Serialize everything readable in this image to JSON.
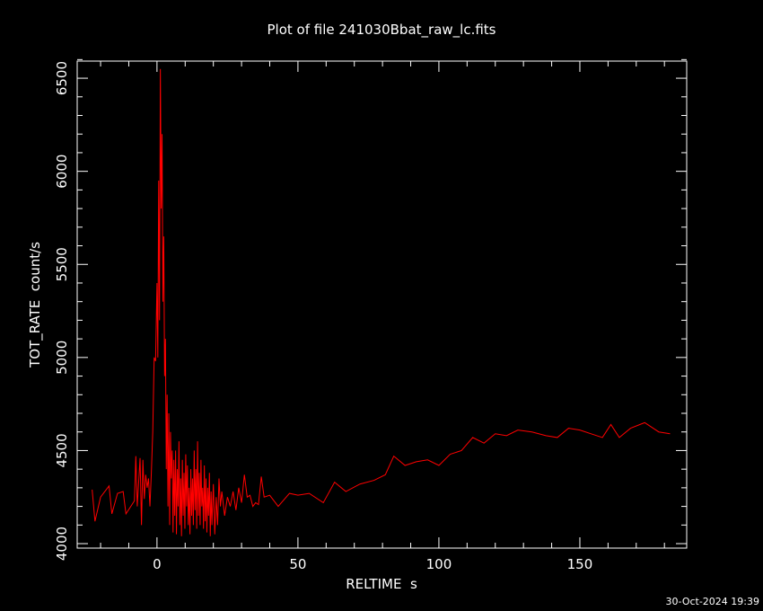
{
  "chart_data": {
    "type": "line",
    "title": "Plot of file 241030Bbat_raw_lc.fits",
    "x_label": "RELTIME  s",
    "y_label": "TOT_RATE  count/s",
    "footer": "30-Oct-2024 19:39",
    "xlim": [
      -28.3,
      187.9
    ],
    "ylim": [
      3976,
      6592
    ],
    "xticks": [
      0,
      50,
      100,
      150
    ],
    "yticks": [
      4000,
      4500,
      5000,
      5500,
      6000,
      6500
    ],
    "xminorticks": [
      -20,
      -10,
      10,
      20,
      30,
      40,
      60,
      70,
      80,
      90,
      110,
      120,
      130,
      140,
      160,
      170,
      180
    ],
    "yminorticks": [
      4100,
      4200,
      4300,
      4400,
      4600,
      4700,
      4800,
      4900,
      5100,
      5200,
      5300,
      5400,
      5600,
      5700,
      5800,
      5900,
      6100,
      6200,
      6300,
      6400,
      6600
    ],
    "series": [
      {
        "color": "#ff0000",
        "x": [
          -23,
          -22,
          -20,
          -17,
          -16,
          -14,
          -12,
          -11,
          -8,
          -7.5,
          -7,
          -6,
          -5.5,
          -5,
          -4.5,
          -4,
          -3.5,
          -3,
          -2.5,
          -2,
          -1.5,
          -1,
          -0.5,
          0,
          0.3,
          0.6,
          0.9,
          1.2,
          1.5,
          1.8,
          2.1,
          2.4,
          2.7,
          3,
          3.3,
          3.6,
          3.9,
          4.2,
          4.5,
          4.8,
          5.1,
          5.4,
          5.7,
          6,
          6.3,
          6.6,
          6.9,
          7.2,
          7.5,
          7.8,
          8.1,
          8.4,
          8.7,
          9,
          9.3,
          9.6,
          9.9,
          10.2,
          10.5,
          10.8,
          11.1,
          11.4,
          11.7,
          12,
          12.3,
          12.6,
          12.9,
          13.2,
          13.5,
          13.8,
          14.1,
          14.4,
          14.7,
          15,
          15.3,
          15.6,
          15.9,
          16.2,
          16.5,
          16.8,
          17.1,
          17.4,
          17.7,
          18,
          18.3,
          18.6,
          18.9,
          19.2,
          19.5,
          20,
          20.5,
          21,
          21.5,
          22,
          22.5,
          23,
          24,
          25,
          26,
          27,
          28,
          29,
          30,
          31,
          32,
          33,
          34,
          35,
          36,
          37,
          38,
          40,
          43,
          47,
          50,
          54,
          59,
          63,
          67,
          72,
          77,
          81,
          84,
          88,
          92,
          96,
          100,
          104,
          108,
          112,
          116,
          120,
          124,
          128,
          133,
          138,
          142,
          146,
          150,
          154,
          158,
          161,
          164,
          168,
          173,
          178,
          182
        ],
        "values": [
          4290,
          4120,
          4250,
          4310,
          4160,
          4270,
          4280,
          4160,
          4230,
          4470,
          4200,
          4460,
          4100,
          4450,
          4240,
          4370,
          4300,
          4350,
          4200,
          4380,
          4600,
          5000,
          4980,
          5400,
          5000,
          5950,
          5200,
          6550,
          5800,
          6200,
          5300,
          5650,
          4900,
          5100,
          4400,
          4800,
          4200,
          4700,
          4100,
          4600,
          4350,
          4500,
          4060,
          4450,
          4150,
          4500,
          4050,
          4400,
          4200,
          4550,
          4100,
          4350,
          4040,
          4450,
          4150,
          4380,
          4080,
          4480,
          4200,
          4420,
          4100,
          4300,
          4050,
          4400,
          4150,
          4350,
          4100,
          4500,
          4180,
          4400,
          4080,
          4550,
          4150,
          4380,
          4100,
          4450,
          4200,
          4300,
          4080,
          4420,
          4120,
          4350,
          4060,
          4300,
          4150,
          4380,
          4040,
          4280,
          4100,
          4320,
          4050,
          4250,
          4100,
          4350,
          4200,
          4280,
          4150,
          4250,
          4200,
          4280,
          4180,
          4300,
          4220,
          4370,
          4250,
          4260,
          4200,
          4220,
          4210,
          4360,
          4250,
          4260,
          4200,
          4270,
          4260,
          4270,
          4220,
          4330,
          4280,
          4320,
          4340,
          4370,
          4470,
          4420,
          4440,
          4450,
          4420,
          4480,
          4500,
          4570,
          4540,
          4590,
          4580,
          4610,
          4600,
          4580,
          4570,
          4620,
          4610,
          4590,
          4570,
          4640,
          4570,
          4620,
          4650,
          4600,
          4590
        ]
      }
    ]
  }
}
